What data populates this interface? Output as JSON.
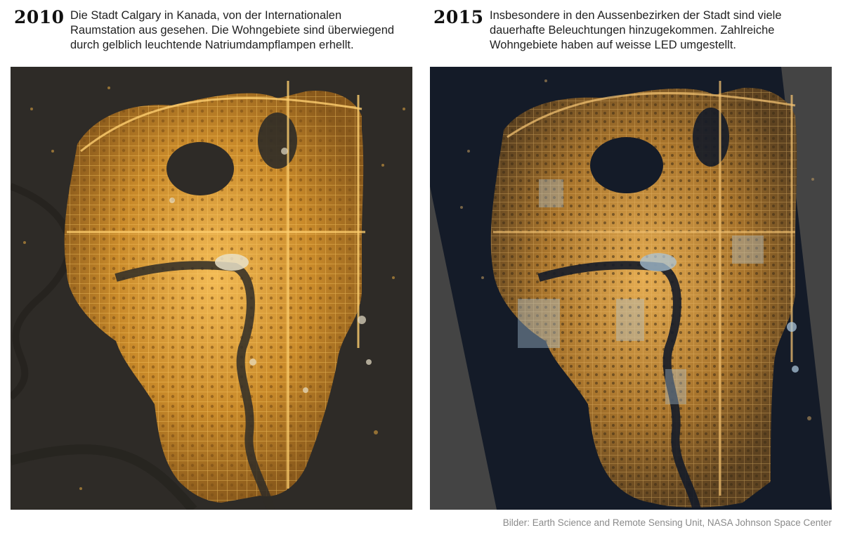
{
  "panels": [
    {
      "year": "2010",
      "caption": "Die Stadt Calgary in Kanada, von der Internationalen Raumstation aus gesehen. Die Wohngebiete sind überwiegend durch gelblich leuchtende Natriumdampflampen erhellt.",
      "photo": {
        "background": "#2e2b27",
        "city_color": "#c98a2a",
        "glow_color": "#f0b040",
        "led_color": "#e8e0c8"
      }
    },
    {
      "year": "2015",
      "caption": "Insbesondere in den Aussenbezirken der Stadt sind viele dauerhafte Beleuchtungen hinzugekommen. Zahlreiche Wohngebiete haben auf weisse LED umgestellt.",
      "photo": {
        "background": "#141b28",
        "frame_color": "#444444",
        "city_color": "#b07a30",
        "glow_color": "#e0a040",
        "led_color": "#a9c4d8"
      }
    }
  ],
  "credit": "Bilder: Earth Science and Remote Sensing Unit, NASA Johnson Space Center"
}
